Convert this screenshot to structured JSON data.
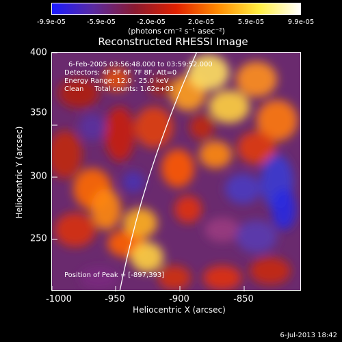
{
  "colorbar": {
    "ticks": [
      "-9.9e-05",
      "-5.9e-05",
      "-2.0e-05",
      "2.0e-05",
      "5.9e-05",
      "9.9e-05"
    ],
    "unit_text": "(photons cm⁻² s⁻¹ asec⁻²)",
    "colors": [
      "#1a1aff",
      "#5a2aa0",
      "#8a1a30",
      "#e02000",
      "#ff8a00",
      "#ffee40",
      "#ffffff"
    ]
  },
  "title": "Reconstructed RHESSI Image",
  "info": {
    "time": "6-Feb-2005 03:56:48.000 to 03:59:52.000",
    "detectors": "Detectors: 4F 5F 6F 7F 8F, Att=0",
    "energy": "Energy Range: 12.0 - 25.0 keV",
    "clean": "Clean     Total counts: 1.62e+03",
    "peak": "Position of Peak = [-897,393]"
  },
  "x_ticks": [
    "-1000",
    "-950",
    "-900",
    "-850"
  ],
  "y_ticks": [
    "400",
    "350",
    "300",
    "250"
  ],
  "x_label": "Heliocentric X (arcsec)",
  "y_label": "Heliocentric Y (arcsec)",
  "timestamp": "6-Jul-2013 18:42"
}
